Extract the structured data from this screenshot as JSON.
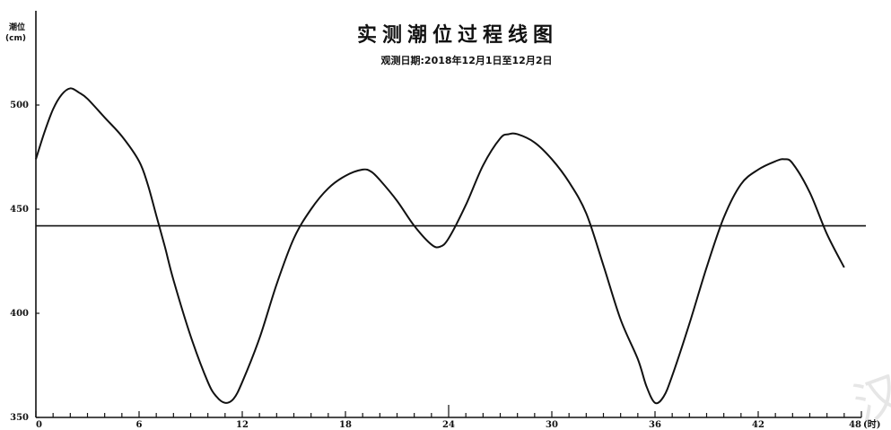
{
  "watermark": "汉",
  "chart_data": {
    "type": "line",
    "title": "实测潮位过程线图",
    "subtitle": "观测日期:2018年12月1日至12月2日",
    "ylabel": "潮位",
    "ylabel_unit": "(cm)",
    "xlabel_unit": "(时)",
    "xlim": [
      0,
      48
    ],
    "ylim": [
      350,
      550
    ],
    "x_ticks": [
      0,
      6,
      12,
      18,
      24,
      30,
      36,
      42,
      48
    ],
    "y_ticks": [
      350,
      400,
      450,
      500
    ],
    "reference_line": {
      "value": 442
    },
    "series": [
      {
        "values_x": [
          0,
          0.5,
          1,
          1.5,
          2,
          2.5,
          3,
          4,
          5,
          6,
          6.5,
          7,
          7.5,
          8,
          9,
          10,
          10.5,
          11,
          11.5,
          12,
          13,
          14,
          15,
          16,
          17,
          18,
          19,
          19.5,
          20,
          21,
          22,
          23,
          23.5,
          24,
          25,
          26,
          27,
          27.5,
          28,
          29,
          30,
          31,
          32,
          33,
          34,
          35,
          35.5,
          36,
          36.5,
          37,
          38,
          39,
          40,
          41,
          42,
          43,
          43.5,
          44,
          45,
          46,
          47
        ],
        "values_y": [
          474,
          487,
          498,
          505,
          508,
          506,
          503,
          494,
          485,
          473,
          462,
          447,
          432,
          416,
          389,
          367,
          360,
          357,
          359,
          367,
          388,
          414,
          436,
          450,
          460,
          466,
          469,
          468,
          464,
          454,
          442,
          433,
          432,
          436,
          452,
          471,
          484,
          486,
          486,
          482,
          474,
          463,
          448,
          423,
          397,
          378,
          365,
          357,
          360,
          370,
          395,
          422,
          446,
          462,
          469,
          473,
          474,
          472,
          458,
          438,
          422
        ]
      }
    ]
  }
}
